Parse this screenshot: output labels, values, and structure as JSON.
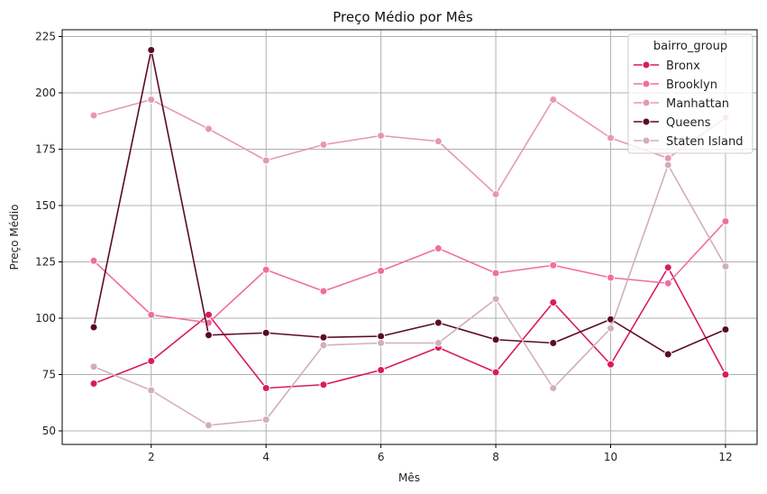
{
  "chart_data": {
    "type": "line",
    "title": "Preço Médio por Mês",
    "xlabel": "Mês",
    "ylabel": "Preço Médio",
    "xlim": [
      0.45,
      12.55
    ],
    "ylim": [
      44,
      228
    ],
    "xticks": [
      2,
      4,
      6,
      8,
      10,
      12
    ],
    "yticks": [
      50,
      75,
      100,
      125,
      150,
      175,
      200,
      225
    ],
    "grid": true,
    "legend": {
      "title": "bairro_group",
      "placement": "top-right"
    },
    "x": [
      1,
      2,
      3,
      4,
      5,
      6,
      7,
      8,
      9,
      10,
      11,
      12
    ],
    "series": [
      {
        "name": "Bronx",
        "color": "#d81b60",
        "values": [
          71,
          81,
          101.5,
          69,
          70.5,
          77,
          87,
          76,
          107,
          79.5,
          122.5,
          75
        ]
      },
      {
        "name": "Brooklyn",
        "color": "#f06ea0",
        "values": [
          125.5,
          101.5,
          98,
          121.5,
          112,
          121,
          131,
          120,
          123.5,
          118,
          115.5,
          143
        ]
      },
      {
        "name": "Manhattan",
        "color": "#e597b8",
        "values": [
          190,
          197,
          184,
          170,
          177,
          181,
          178.5,
          155,
          197,
          180,
          171,
          189
        ]
      },
      {
        "name": "Queens",
        "color": "#5a0a2a",
        "values": [
          96,
          219,
          92.5,
          93.5,
          91.5,
          92,
          98,
          90.5,
          89,
          99.5,
          84,
          95
        ]
      },
      {
        "name": "Staten Island",
        "color": "#d3aebd",
        "values": [
          78.5,
          68,
          52.5,
          55,
          88,
          89,
          89,
          108.5,
          69,
          95.5,
          168,
          123
        ]
      }
    ]
  }
}
